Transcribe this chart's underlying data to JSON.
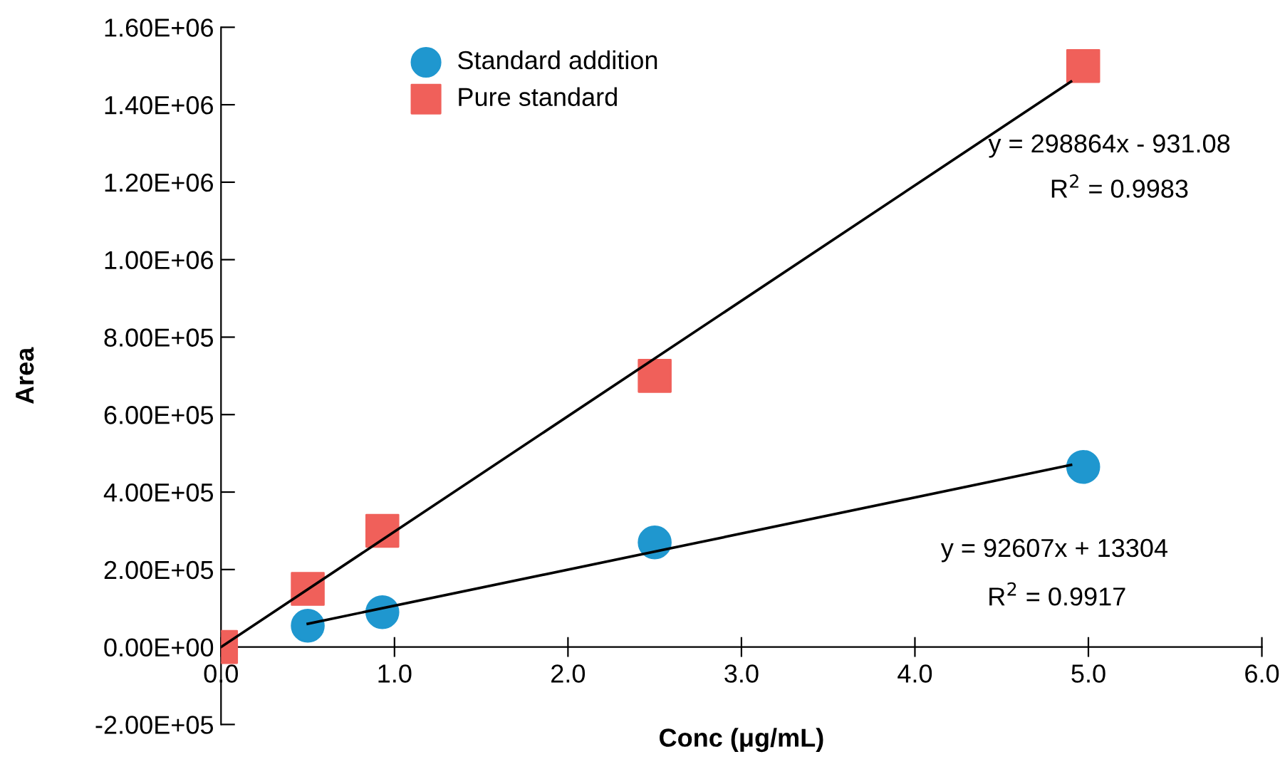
{
  "chart_data": {
    "type": "scatter",
    "xlabel": "Conc (μg/mL)",
    "ylabel": "Area",
    "xlim": [
      0,
      6
    ],
    "ylim": [
      -200000,
      1600000
    ],
    "xticks": [
      {
        "value": 0,
        "label": "0.0"
      },
      {
        "value": 1,
        "label": "1.0"
      },
      {
        "value": 2,
        "label": "2.0"
      },
      {
        "value": 3,
        "label": "3.0"
      },
      {
        "value": 4,
        "label": "4.0"
      },
      {
        "value": 5,
        "label": "5.0"
      },
      {
        "value": 6,
        "label": "6.0"
      }
    ],
    "yticks": [
      {
        "value": -200000,
        "label": "-2.00E+05"
      },
      {
        "value": 0,
        "label": "0.00E+00"
      },
      {
        "value": 200000,
        "label": "2.00E+05"
      },
      {
        "value": 400000,
        "label": "4.00E+05"
      },
      {
        "value": 600000,
        "label": "6.00E+05"
      },
      {
        "value": 800000,
        "label": "8.00E+05"
      },
      {
        "value": 1000000,
        "label": "1.00E+06"
      },
      {
        "value": 1200000,
        "label": "1.20E+06"
      },
      {
        "value": 1400000,
        "label": "1.40E+06"
      },
      {
        "value": 1600000,
        "label": "1.60E+06"
      }
    ],
    "grid": false,
    "legend": "top left",
    "series": [
      {
        "name": "Standard addition",
        "marker": "circle",
        "color": "#1f97cf",
        "x": [
          0.5,
          0.93,
          2.5,
          4.97
        ],
        "values": [
          55000,
          90000,
          270000,
          465000
        ]
      },
      {
        "name": "Pure standard",
        "marker": "square",
        "color": "#f0605a",
        "x": [
          0,
          0.5,
          0.93,
          2.5,
          4.97
        ],
        "values": [
          0,
          150000,
          300000,
          700000,
          1500000
        ]
      },
      {
        "type": "line",
        "color": "#000000",
        "x": [
          0,
          4.9
        ],
        "values": [
          0,
          1460000
        ]
      },
      {
        "type": "line",
        "color": "#000000",
        "x": [
          0.5,
          4.9
        ],
        "values": [
          60000,
          470000
        ]
      }
    ],
    "annotations": [
      "y = 298864x - 931.08",
      "R$^{2}$ = 0.9983",
      "y = 92607x + 13304",
      "R$^{2}$ = 0.9917"
    ]
  }
}
